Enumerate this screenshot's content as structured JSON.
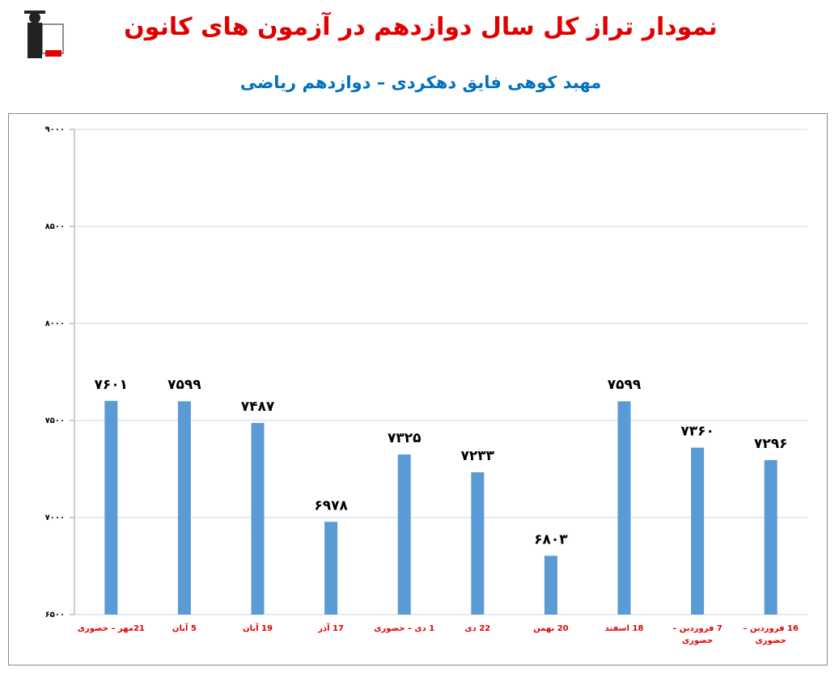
{
  "chart_data": {
    "type": "bar",
    "title": "نمودار تراز کل سال دوازدهم در آزمون های کانون",
    "subtitle": "مهبد کوهی فایق دهکردی – دوازدهم ریاضی",
    "categories": [
      "21مهر – حضوری",
      "5 آبان",
      "19 آبان",
      "17 آذر",
      "1 دی – حضوری",
      "22 دی",
      "20 بهمن",
      "18 اسفند",
      "7 فروردین – حضوری",
      "16 فروردین – حضوری"
    ],
    "values": [
      7601,
      7599,
      7487,
      6978,
      7325,
      7233,
      6803,
      7599,
      7360,
      7296
    ],
    "value_labels": [
      "۷۶۰۱",
      "۷۵۹۹",
      "۷۴۸۷",
      "۶۹۷۸",
      "۷۳۲۵",
      "۷۲۳۳",
      "۶۸۰۳",
      "۷۵۹۹",
      "۷۳۶۰",
      "۷۲۹۶"
    ],
    "color": "#5b9bd5",
    "ylim": [
      6500,
      9000
    ],
    "yticks": [
      {
        "value": 6500,
        "label": "۶۵۰۰"
      },
      {
        "value": 7000,
        "label": "۷۰۰۰"
      },
      {
        "value": 7500,
        "label": "۷۵۰۰"
      },
      {
        "value": 8000,
        "label": "۸۰۰۰"
      },
      {
        "value": 8500,
        "label": "۸۵۰۰"
      },
      {
        "value": 9000,
        "label": "۹۰۰۰"
      }
    ],
    "grid": true
  }
}
